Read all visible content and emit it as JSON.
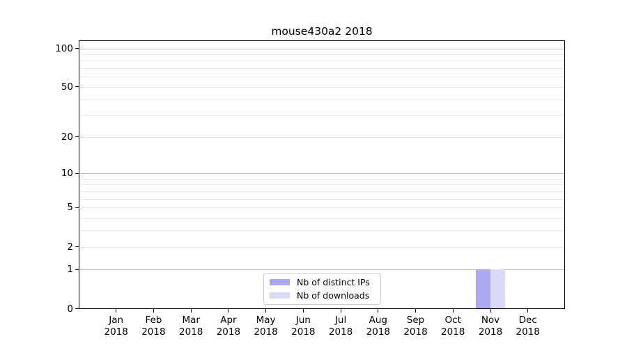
{
  "figure": {
    "background": "#ffffff"
  },
  "chart_data": {
    "type": "bar",
    "title": "mouse430a2 2018",
    "categories": [
      "Jan 2018",
      "Feb 2018",
      "Mar 2018",
      "Apr 2018",
      "May 2018",
      "Jun 2018",
      "Jul 2018",
      "Aug 2018",
      "Sep 2018",
      "Oct 2018",
      "Nov 2018",
      "Dec 2018"
    ],
    "series": [
      {
        "name": "Nb of distinct IPs",
        "color": "#a9a9f1",
        "values": [
          0,
          0,
          0,
          0,
          0,
          0,
          0,
          0,
          0,
          0,
          1,
          0
        ]
      },
      {
        "name": "Nb of downloads",
        "color": "#d9d9f8",
        "values": [
          0,
          0,
          0,
          0,
          0,
          0,
          0,
          0,
          0,
          0,
          1,
          0
        ]
      }
    ],
    "yscale": "log1p",
    "yticks": [
      0,
      1,
      2,
      5,
      10,
      20,
      50,
      100
    ],
    "ylim": [
      0,
      115
    ],
    "xlabel": "",
    "ylabel": "",
    "grid": {
      "orientation": "horizontal",
      "major_lines": [
        1,
        10,
        100
      ],
      "minor_lines": [
        2,
        3,
        4,
        5,
        6,
        7,
        8,
        9,
        20,
        30,
        40,
        50,
        60,
        70,
        80,
        90
      ],
      "major_color": "#bcbcbc",
      "minor_color": "#e9e9e9"
    },
    "legend": {
      "position": "lower center"
    },
    "axis_color": "#000000"
  }
}
